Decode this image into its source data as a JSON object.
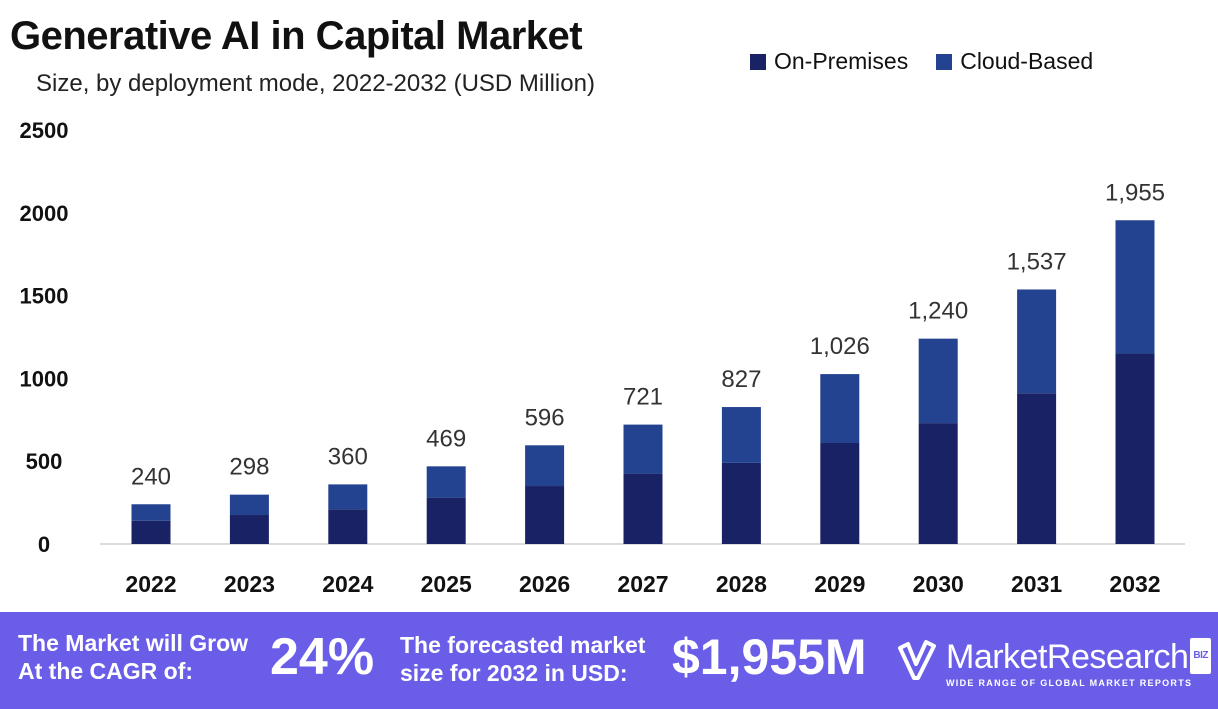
{
  "header": {
    "title": "Generative AI in Capital Market",
    "subtitle": "Size, by deployment mode, 2022-2032 (USD Million)"
  },
  "legend": {
    "items": [
      {
        "label": "On-Premises",
        "color": "#1a2266"
      },
      {
        "label": "Cloud-Based",
        "color": "#23428f"
      }
    ]
  },
  "chart_data": {
    "type": "bar",
    "stacked": true,
    "title": "Generative AI in Capital Market",
    "subtitle": "Size, by deployment mode, 2022-2032 (USD Million)",
    "categories": [
      "2022",
      "2023",
      "2024",
      "2025",
      "2026",
      "2027",
      "2028",
      "2029",
      "2030",
      "2031",
      "2032"
    ],
    "series": [
      {
        "name": "On-Premises",
        "color": "#1a2266",
        "values": [
          140,
          175,
          210,
          280,
          350,
          425,
          490,
          610,
          730,
          910,
          1150
        ]
      },
      {
        "name": "Cloud-Based",
        "color": "#23428f",
        "values": [
          100,
          123,
          150,
          189,
          246,
          296,
          337,
          416,
          510,
          627,
          805
        ]
      }
    ],
    "totals": [
      240,
      298,
      360,
      469,
      596,
      721,
      827,
      1026,
      1240,
      1537,
      1955
    ],
    "total_labels": [
      "240",
      "298",
      "360",
      "469",
      "596",
      "721",
      "827",
      "1,026",
      "1,240",
      "1,537",
      "1,955"
    ],
    "yticks": [
      "0",
      "500",
      "1000",
      "1500",
      "2000",
      "2500"
    ],
    "ylim": [
      0,
      2500
    ],
    "xlabel": "",
    "ylabel": "",
    "grid": false,
    "legend_position": "top-right"
  },
  "footer": {
    "cagr_text_line1": "The Market will Grow",
    "cagr_text_line2": "At the CAGR of:",
    "cagr_value": "24%",
    "forecast_text_line1": "The forecasted market",
    "forecast_text_line2": "size for 2032 in USD:",
    "forecast_value": "$1,955M",
    "brand_name": "MarketResearch",
    "brand_badge": "BIZ",
    "brand_tagline": "WIDE RANGE OF GLOBAL MARKET REPORTS"
  }
}
